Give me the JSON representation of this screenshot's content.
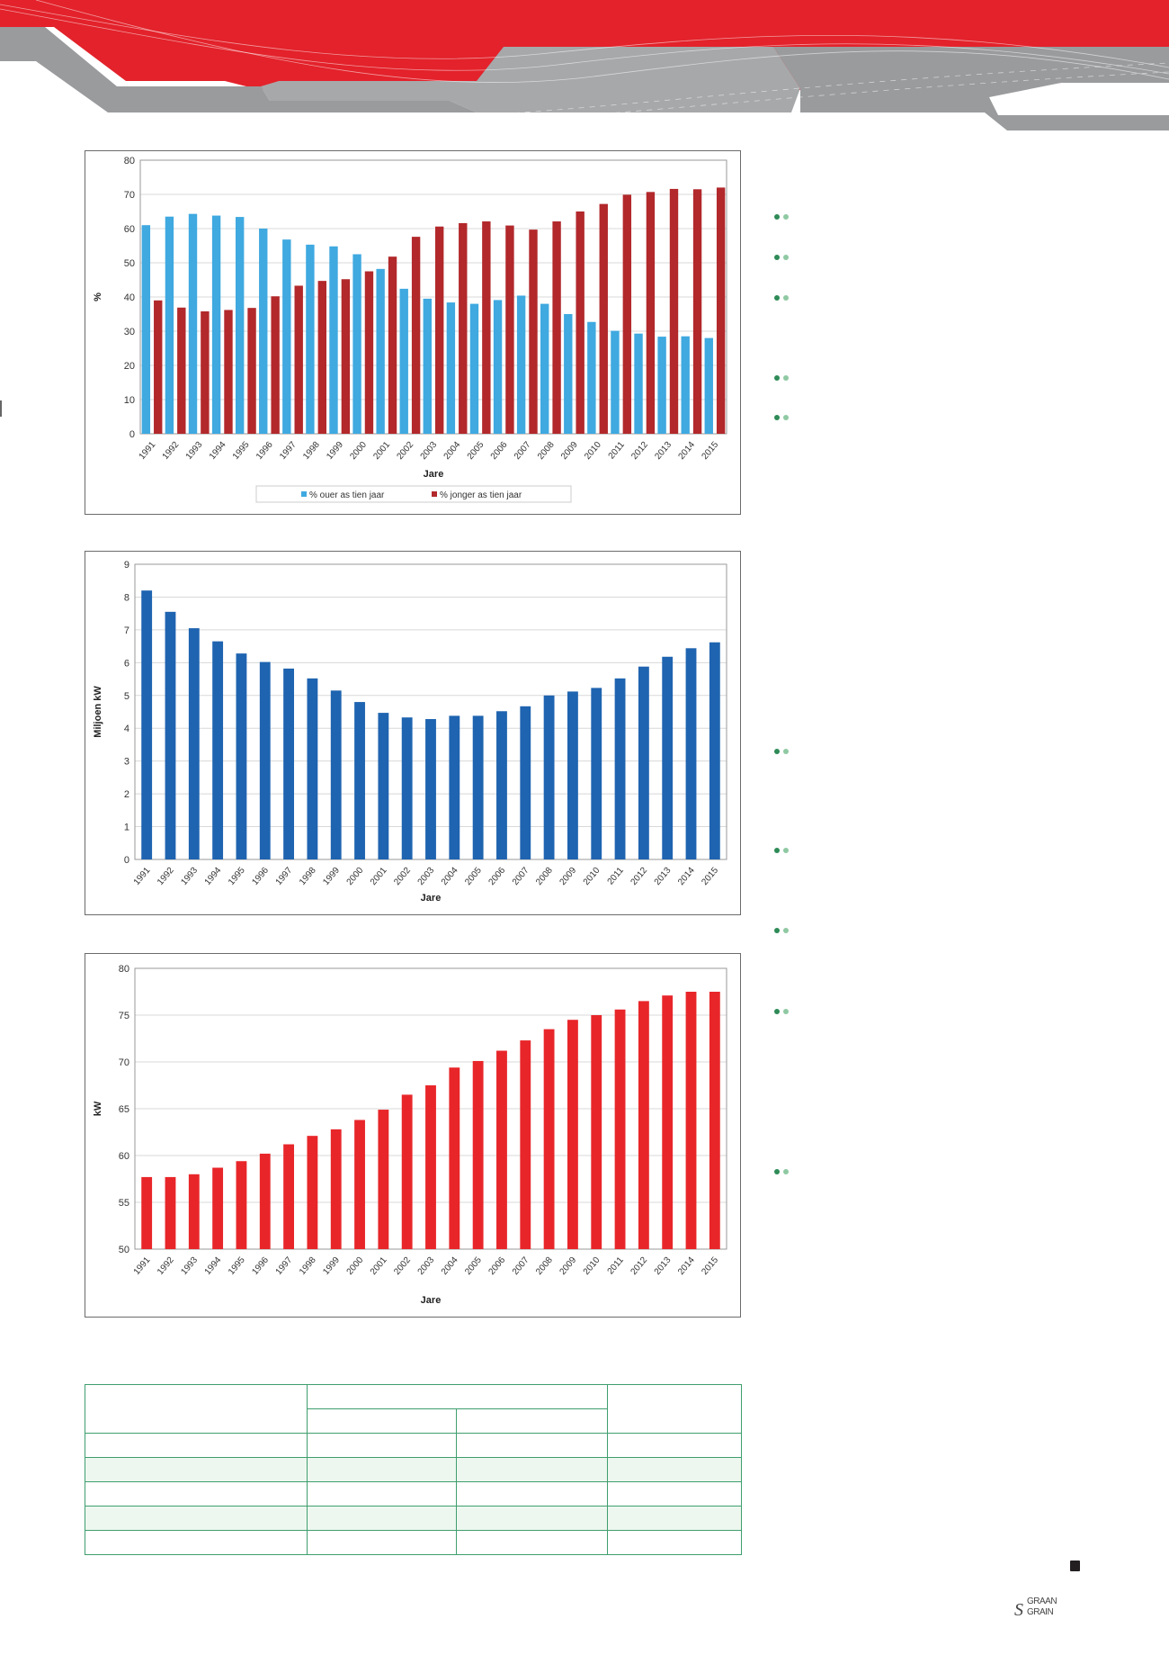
{
  "colors": {
    "brand_red": "#e3222b",
    "header_gray": "#9a9b9d",
    "table_green": "#3f9e6e",
    "bullet_green": "#2e8b57"
  },
  "logo": {
    "text_top": "GRAAN",
    "text_left": "SA",
    "text_bottom": "GRAIN"
  },
  "chart_data": [
    {
      "type": "bar",
      "title": "",
      "xlabel": "Jare",
      "ylabel": "%",
      "ylim": [
        0,
        80
      ],
      "yticks": [
        "0",
        "10",
        "20",
        "30",
        "40",
        "50",
        "60",
        "70",
        "80"
      ],
      "grid": true,
      "legend_position": "bottom",
      "categories": [
        "1991",
        "1992",
        "1993",
        "1994",
        "1995",
        "1996",
        "1997",
        "1998",
        "1999",
        "2000",
        "2001",
        "2002",
        "2003",
        "2004",
        "2005",
        "2006",
        "2007",
        "2008",
        "2009",
        "2010",
        "2011",
        "2012",
        "2013",
        "2014",
        "2015"
      ],
      "series": [
        {
          "name": "% ouer as tien jaar",
          "color": "#3fa9e0",
          "values": [
            61,
            63.5,
            64.3,
            63.8,
            63.4,
            60,
            56.8,
            55.3,
            54.8,
            52.5,
            48.2,
            42.4,
            39.5,
            38.4,
            38,
            39.1,
            40.4,
            38,
            35,
            32.7,
            30.1,
            29.3,
            28.4,
            28.5,
            28
          ]
        },
        {
          "name": "% jonger as tien jaar",
          "color": "#b2282b",
          "values": [
            39,
            36.9,
            35.8,
            36.2,
            36.8,
            40.2,
            43.3,
            44.7,
            45.2,
            47.5,
            51.8,
            57.6,
            60.6,
            61.6,
            62.1,
            60.9,
            59.7,
            62.1,
            65,
            67.2,
            69.9,
            70.7,
            71.6,
            71.5,
            72
          ]
        }
      ]
    },
    {
      "type": "bar",
      "title": "",
      "xlabel": "Jare",
      "ylabel": "Miljoen kW",
      "ylim": [
        0,
        9
      ],
      "yticks": [
        "0",
        "1",
        "2",
        "3",
        "4",
        "5",
        "6",
        "7",
        "8",
        "9"
      ],
      "grid": true,
      "categories": [
        "1991",
        "1992",
        "1993",
        "1994",
        "1995",
        "1996",
        "1997",
        "1998",
        "1999",
        "2000",
        "2001",
        "2002",
        "2003",
        "2004",
        "2005",
        "2006",
        "2007",
        "2008",
        "2009",
        "2010",
        "2011",
        "2012",
        "2013",
        "2014",
        "2015"
      ],
      "series": [
        {
          "name": "Miljoen kW",
          "color": "#1f64b0",
          "values": [
            8.2,
            7.55,
            7.05,
            6.65,
            6.28,
            6.02,
            5.82,
            5.52,
            5.15,
            4.8,
            4.47,
            4.33,
            4.28,
            4.38,
            4.38,
            4.52,
            4.67,
            5,
            5.12,
            5.23,
            5.52,
            5.88,
            6.18,
            6.44,
            6.62
          ]
        }
      ]
    },
    {
      "type": "bar",
      "title": "",
      "xlabel": "Jare",
      "ylabel": "kW",
      "ylim": [
        50,
        80
      ],
      "yticks": [
        "50",
        "55",
        "60",
        "65",
        "70",
        "75",
        "80"
      ],
      "grid": true,
      "categories": [
        "1991",
        "1992",
        "1993",
        "1994",
        "1995",
        "1996",
        "1997",
        "1998",
        "1999",
        "2000",
        "2001",
        "2002",
        "2003",
        "2004",
        "2005",
        "2006",
        "2007",
        "2008",
        "2009",
        "2010",
        "2011",
        "2012",
        "2013",
        "2014",
        "2015"
      ],
      "series": [
        {
          "name": "kW",
          "color": "#e8262a",
          "values": [
            57.7,
            57.7,
            58,
            58.7,
            59.4,
            60.2,
            61.2,
            62.1,
            62.8,
            63.8,
            64.9,
            66.5,
            67.5,
            69.4,
            70.1,
            71.2,
            72.3,
            73.5,
            74.5,
            75,
            75.6,
            76.5,
            77.1,
            77.5,
            77.5
          ]
        }
      ]
    }
  ]
}
